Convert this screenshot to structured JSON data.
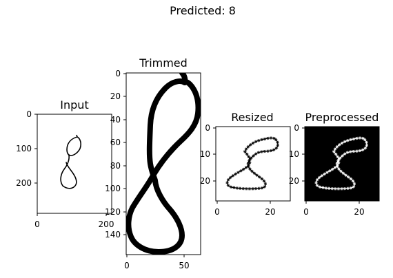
{
  "figure": {
    "suptitle": "Predicted: 8"
  },
  "panels": [
    {
      "title": "Input",
      "x_ticks": [
        "0",
        "200"
      ],
      "y_ticks": [
        "0",
        "100",
        "200"
      ]
    },
    {
      "title": "Trimmed",
      "x_ticks": [
        "0",
        "50"
      ],
      "y_ticks": [
        "0",
        "20",
        "40",
        "60",
        "80",
        "100",
        "120",
        "140"
      ]
    },
    {
      "title": "Resized",
      "x_ticks": [
        "0",
        "20"
      ],
      "y_ticks": [
        "0",
        "10",
        "20"
      ]
    },
    {
      "title": "Preprocessed",
      "x_ticks": [
        "0",
        "20"
      ],
      "y_ticks": [
        "0",
        "10",
        "20"
      ]
    }
  ],
  "colors": {
    "ink": "#000000",
    "paper": "#ffffff",
    "preprocessed_bg": "#000000",
    "stroke_inverted": "#ffffff",
    "resized_stroke": "#555555"
  }
}
